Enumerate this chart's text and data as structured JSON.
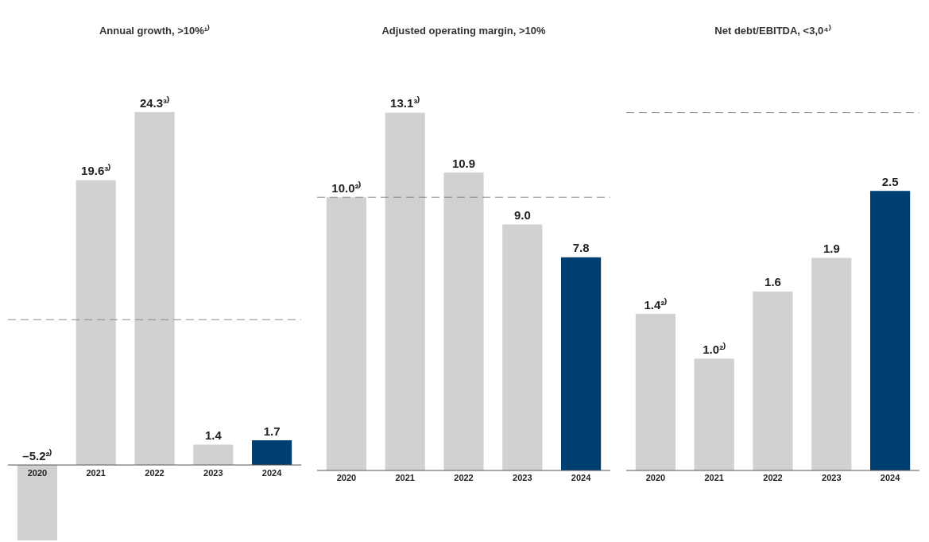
{
  "chart_data": [
    {
      "type": "bar",
      "title": "Annual growth, >10%¹⁾",
      "categories": [
        "2020",
        "2021",
        "2022",
        "2023",
        "2024"
      ],
      "values": [
        -5.2,
        19.6,
        24.3,
        1.4,
        1.7
      ],
      "colors": [
        "#d0d1d3",
        "#d0d1d3",
        "#d0d1d3",
        "#d0d1d3",
        "#003f72"
      ],
      "value_labels": [
        "–5.2²⁾",
        "19.6³⁾",
        "24.3³⁾",
        "1.4",
        "1.7"
      ],
      "ref_lines": [
        {
          "axis": "y",
          "value": 10,
          "line_style": "dashed",
          "color": "#8a8a8a"
        }
      ],
      "legend": false,
      "tick_labels": "x"
    },
    {
      "type": "bar",
      "title": "Adjusted operating margin, >10%",
      "categories": [
        "2020",
        "2021",
        "2022",
        "2023",
        "2024"
      ],
      "values": [
        10.0,
        13.1,
        10.9,
        9.0,
        7.8
      ],
      "colors": [
        "#d0d1d3",
        "#d0d1d3",
        "#d0d1d3",
        "#d0d1d3",
        "#003f72"
      ],
      "value_labels": [
        "10.0²⁾",
        "13.1³⁾",
        "10.9",
        "9.0",
        "7.8"
      ],
      "ref_lines": [
        {
          "axis": "y",
          "value": 10,
          "line_style": "dashed",
          "color": "#8a8a8a"
        }
      ],
      "legend": false,
      "tick_labels": "x"
    },
    {
      "type": "bar",
      "title": "Net debt/EBITDA, <3,0⁴⁾",
      "categories": [
        "2020",
        "2021",
        "2022",
        "2023",
        "2024"
      ],
      "values": [
        1.4,
        1.0,
        1.6,
        1.9,
        2.5
      ],
      "colors": [
        "#d0d1d3",
        "#d0d1d3",
        "#d0d1d3",
        "#d0d1d3",
        "#003f72"
      ],
      "value_labels": [
        "1.4²⁾",
        "1.0²⁾",
        "1.6",
        "1.9",
        "2.5"
      ],
      "ref_lines": [
        {
          "axis": "y",
          "value": 3.2,
          "line_style": "dashed",
          "color": "#8a8a8a"
        }
      ],
      "legend": false,
      "tick_labels": "x"
    }
  ]
}
